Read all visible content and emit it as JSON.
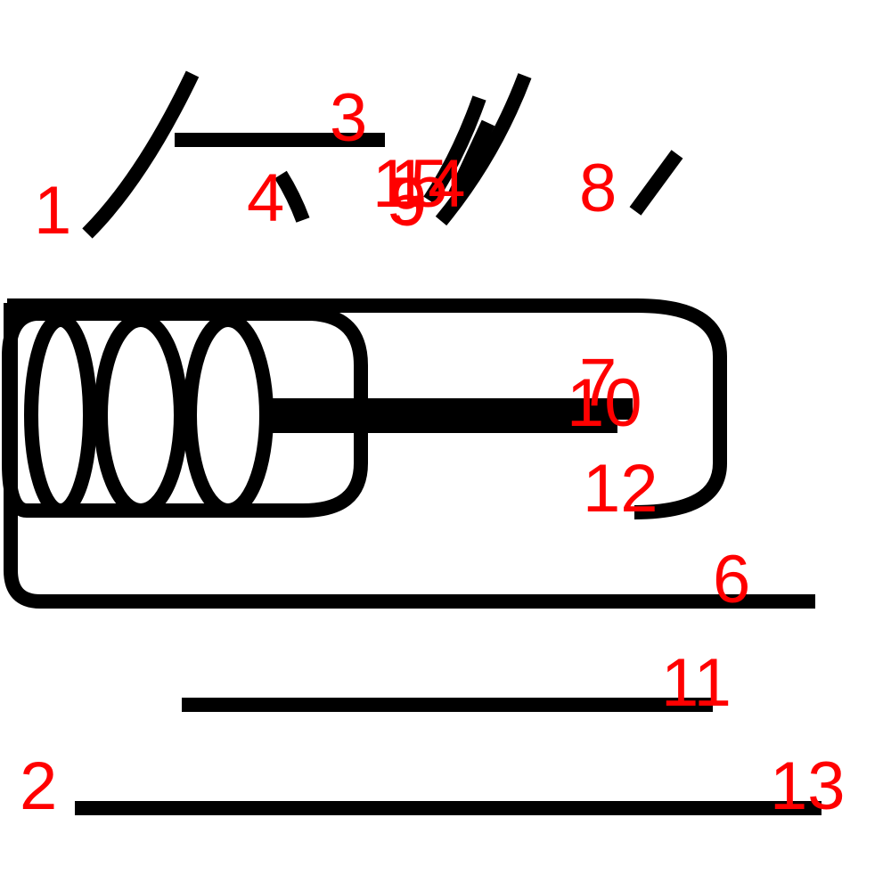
{
  "colors": {
    "stroke": "#000000",
    "label": "#ff0000",
    "background": "#ffffff"
  },
  "labels": [
    {
      "id": "1",
      "text": "1"
    },
    {
      "id": "2",
      "text": "2"
    },
    {
      "id": "3",
      "text": "3"
    },
    {
      "id": "4",
      "text": "4"
    },
    {
      "id": "5",
      "text": "5"
    },
    {
      "id": "6",
      "text": "6"
    },
    {
      "id": "7",
      "text": "7"
    },
    {
      "id": "8",
      "text": "8"
    },
    {
      "id": "9",
      "text": "9"
    },
    {
      "id": "10",
      "text": "10"
    },
    {
      "id": "11",
      "text": "11"
    },
    {
      "id": "12",
      "text": "12"
    },
    {
      "id": "13",
      "text": "13"
    },
    {
      "id": "14",
      "text": "14"
    },
    {
      "id": "15",
      "text": "15"
    }
  ]
}
